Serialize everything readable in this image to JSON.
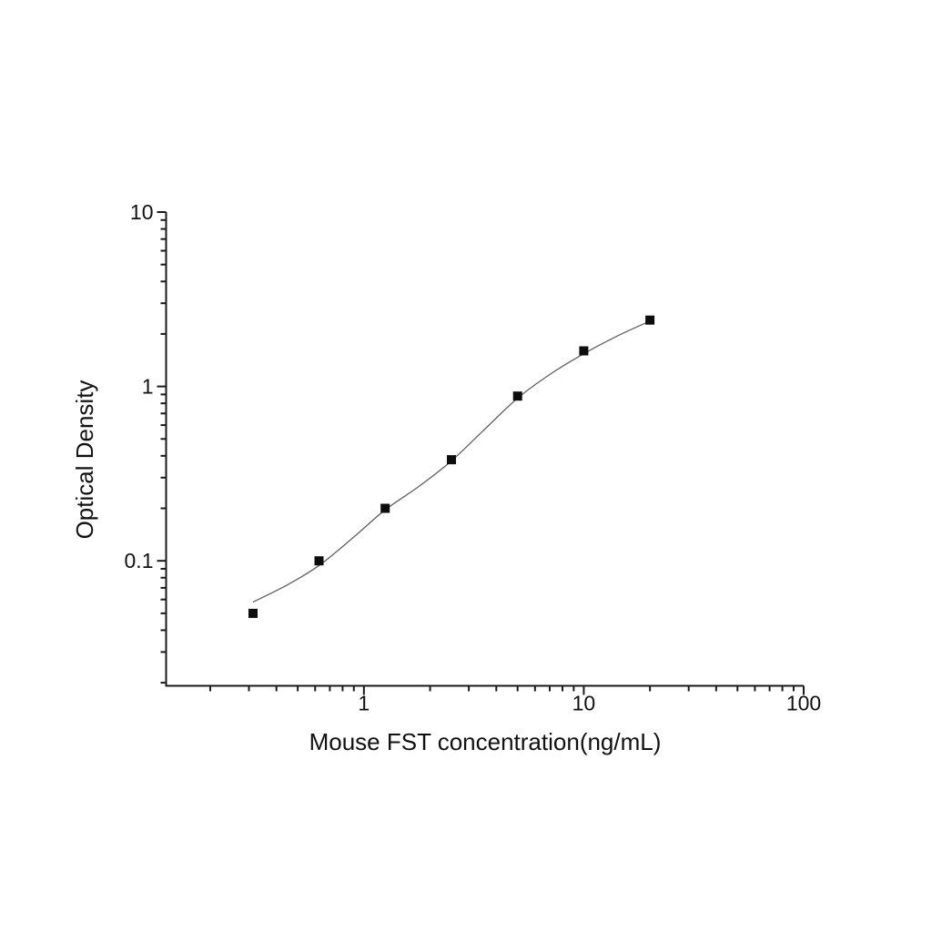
{
  "page": {
    "background_color": "#ffffff",
    "axis_color": "#1a1a1a",
    "curve_color": "#606060",
    "marker_color": "#0d0d0d"
  },
  "chart_data": {
    "type": "scatter",
    "title": "",
    "xlabel": "Mouse FST concentration(ng/mL)",
    "ylabel": "Optical Density",
    "x_scale": "log",
    "y_scale": "log",
    "xlim": [
      0.126,
      100
    ],
    "ylim": [
      0.0192,
      10
    ],
    "grid": false,
    "legend": false,
    "x_ticks": [
      {
        "value": 1,
        "label": "1"
      },
      {
        "value": 10,
        "label": "10"
      },
      {
        "value": 100,
        "label": "100"
      }
    ],
    "y_ticks": [
      {
        "value": 10,
        "label": "10"
      },
      {
        "value": 1,
        "label": "1"
      },
      {
        "value": 0.1,
        "label": "0.1"
      }
    ],
    "series": [
      {
        "marker": "filled-square",
        "points_x": [
          0.313,
          0.625,
          1.25,
          2.5,
          5,
          10,
          20
        ],
        "points_y": [
          0.05,
          0.1,
          0.2,
          0.38,
          0.88,
          1.6,
          2.4
        ]
      }
    ],
    "fit_curve": {
      "x": [
        0.313,
        0.45,
        0.625,
        0.9,
        1.25,
        1.8,
        2.5,
        3.5,
        5,
        7,
        10,
        14,
        20
      ],
      "y": [
        0.058,
        0.073,
        0.094,
        0.137,
        0.196,
        0.27,
        0.374,
        0.56,
        0.856,
        1.17,
        1.54,
        1.93,
        2.37
      ]
    }
  }
}
